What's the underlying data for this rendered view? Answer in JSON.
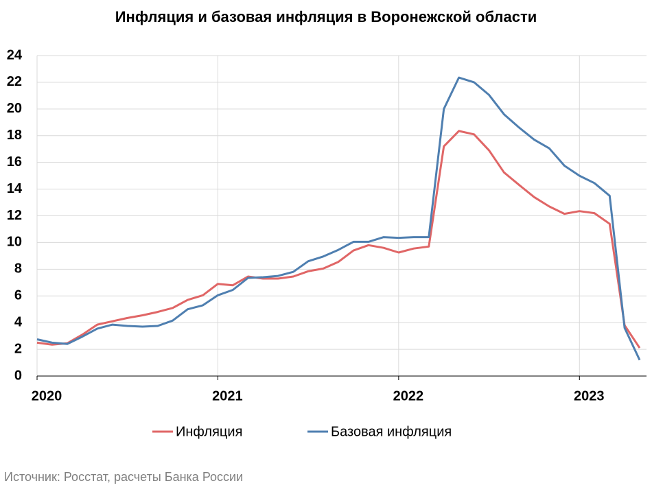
{
  "chart_data": {
    "type": "line",
    "title": "Инфляция и базовая инфляция в Воронежской области",
    "source": "Источник: Росстат, расчеты Банка России",
    "x": [
      2020,
      2020.083,
      2020.167,
      2020.25,
      2020.333,
      2020.417,
      2020.5,
      2020.583,
      2020.667,
      2020.75,
      2020.833,
      2020.917,
      2021,
      2021.083,
      2021.167,
      2021.25,
      2021.333,
      2021.417,
      2021.5,
      2021.583,
      2021.667,
      2021.75,
      2021.833,
      2021.917,
      2022,
      2022.083,
      2022.167,
      2022.25,
      2022.333,
      2022.417,
      2022.5,
      2022.583,
      2022.667,
      2022.75,
      2022.833,
      2022.917,
      2023,
      2023.083,
      2023.167,
      2023.25,
      2023.333
    ],
    "series": [
      {
        "name": "Инфляция",
        "color": "#e06666",
        "values": [
          2.5,
          2.35,
          2.45,
          3.1,
          3.85,
          4.1,
          4.35,
          4.55,
          4.8,
          5.1,
          5.7,
          6.05,
          6.9,
          6.8,
          7.45,
          7.3,
          7.3,
          7.45,
          7.85,
          8.05,
          8.55,
          9.4,
          9.8,
          9.6,
          9.25,
          9.55,
          9.7,
          17.2,
          18.35,
          18.1,
          16.9,
          15.25,
          14.3,
          13.4,
          12.7,
          12.15,
          12.35,
          12.2,
          11.4,
          3.8,
          2.1
        ]
      },
      {
        "name": "Базовая инфляция",
        "color": "#4f7fb0",
        "values": [
          2.75,
          2.5,
          2.4,
          2.95,
          3.55,
          3.85,
          3.75,
          3.7,
          3.75,
          4.15,
          5.0,
          5.3,
          6.05,
          6.45,
          7.35,
          7.4,
          7.5,
          7.8,
          8.6,
          8.95,
          9.45,
          10.05,
          10.05,
          10.4,
          10.35,
          10.4,
          10.4,
          20.0,
          22.35,
          22.0,
          21.05,
          19.6,
          18.6,
          17.7,
          17.05,
          15.75,
          15.0,
          14.45,
          13.5,
          3.6,
          1.2
        ]
      }
    ],
    "xlim": [
      2020,
      2023.333
    ],
    "xticks": [
      2020,
      2021,
      2022,
      2023
    ],
    "ylim": [
      0,
      24
    ],
    "yticks": [
      0,
      2,
      4,
      6,
      8,
      10,
      12,
      14,
      16,
      18,
      20,
      22,
      24
    ],
    "grid": true
  }
}
